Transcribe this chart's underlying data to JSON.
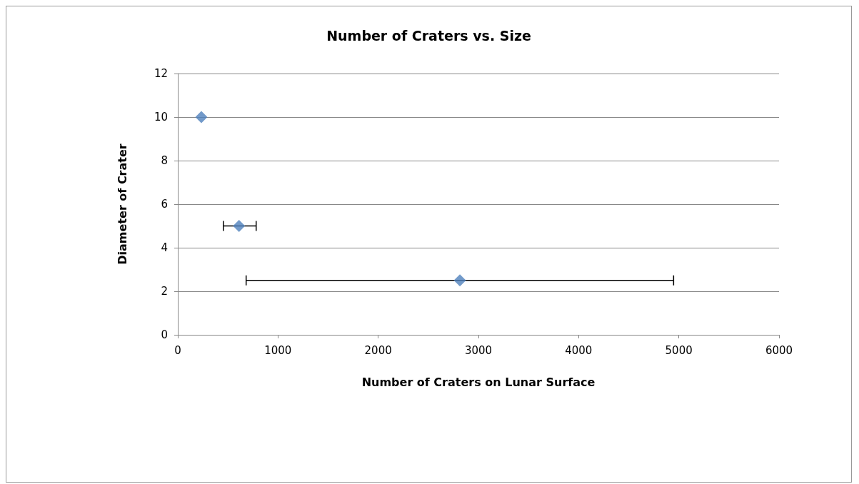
{
  "chart_data": {
    "type": "scatter",
    "title": "Number of Craters vs. Size",
    "xlabel": "Number of Craters on Lunar Surface",
    "ylabel": "Diameter of Crater",
    "x": [
      235,
      611,
      2815
    ],
    "values": [
      10,
      5,
      2.5
    ],
    "xerrors": [
      null,
      [
        455,
        782
      ],
      [
        682,
        4948
      ]
    ],
    "color": "#4f81bd",
    "marker": "diamond",
    "xlim": [
      0,
      6000
    ],
    "xticks": [
      0,
      1000,
      2000,
      3000,
      4000,
      5000,
      6000
    ],
    "ylim": [
      0,
      12
    ],
    "yticks": [
      0,
      2,
      4,
      6,
      8,
      10,
      12
    ],
    "grid": "y"
  }
}
